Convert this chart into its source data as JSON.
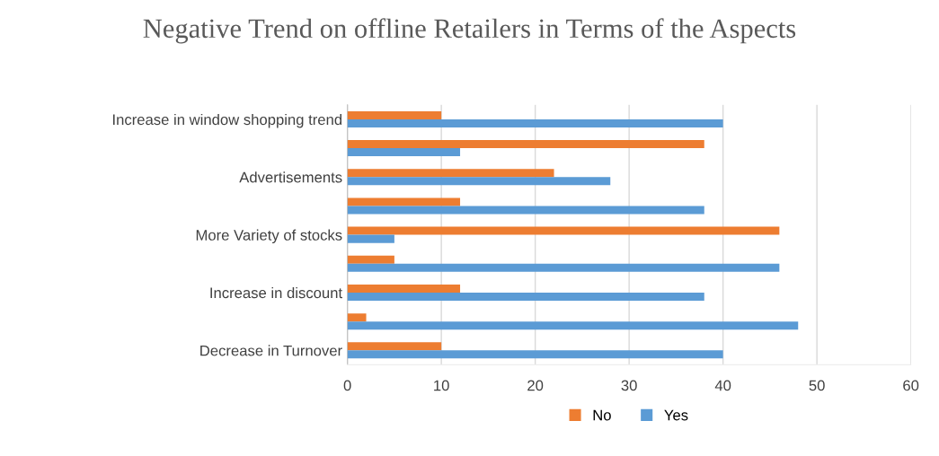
{
  "chart_data": {
    "type": "bar",
    "orientation": "horizontal",
    "title": "Negative Trend on offline Retailers in Terms of the Aspects",
    "categories": [
      "Increase in window shopping trend",
      null,
      "Advertisements",
      null,
      "More Variety of stocks",
      null,
      "Increase in discount",
      null,
      "Decrease in Turnover"
    ],
    "series": [
      {
        "name": "No",
        "color": "#ed7d31",
        "values": [
          10,
          38,
          22,
          12,
          46,
          5,
          12,
          2,
          10
        ]
      },
      {
        "name": "Yes",
        "color": "#5b9bd5",
        "values": [
          40,
          12,
          28,
          38,
          5,
          46,
          38,
          48,
          40
        ]
      }
    ],
    "xlim": [
      0,
      60
    ],
    "xticks": [
      0,
      10,
      20,
      30,
      40,
      50,
      60
    ],
    "grid": "x",
    "legend": "bottom"
  }
}
